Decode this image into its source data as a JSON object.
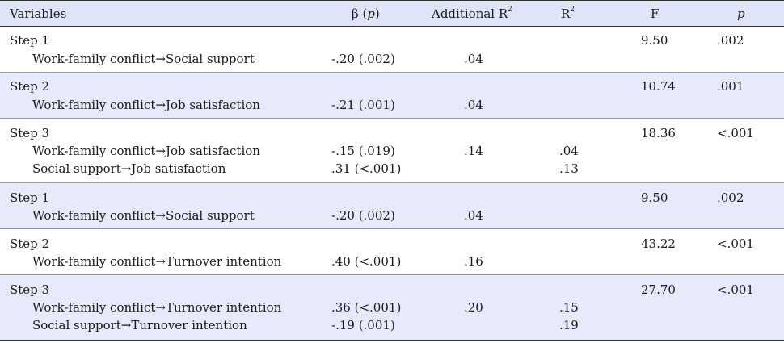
{
  "header": {
    "variables": "Variables",
    "beta_prefix": "β (",
    "beta_p": "p",
    "beta_suffix": ")",
    "additional": "Additional R",
    "r2_base": "R",
    "sup": "2",
    "f": "F",
    "p": "p"
  },
  "rows": [
    {
      "step": "Step 1",
      "sub": [
        "Work-family conflict→Social support"
      ],
      "beta": [
        "-.20 (.002)"
      ],
      "add": ".04",
      "r2": [],
      "f": "9.50",
      "p": ".002"
    },
    {
      "step": "Step 2",
      "sub": [
        "Work-family conflict→Job satisfaction"
      ],
      "beta": [
        "-.21 (.001)"
      ],
      "add": ".04",
      "r2": [],
      "f": "10.74",
      "p": ".001"
    },
    {
      "step": "Step 3",
      "sub": [
        "Work-family conflict→Job satisfaction",
        "Social support→Job satisfaction"
      ],
      "beta": [
        "-.15 (.019)",
        ".31 (<.001)"
      ],
      "add": ".14",
      "r2": [
        ".04",
        ".13"
      ],
      "f": "18.36",
      "p": "<.001"
    },
    {
      "step": "Step 1",
      "sub": [
        "Work-family conflict→Social support"
      ],
      "beta": [
        "-.20 (.002)"
      ],
      "add": ".04",
      "r2": [],
      "f": "9.50",
      "p": ".002"
    },
    {
      "step": "Step 2",
      "sub": [
        "Work-family conflict→Turnover intention"
      ],
      "beta": [
        ".40 (<.001)"
      ],
      "add": ".16",
      "r2": [],
      "f": "43.22",
      "p": "<.001"
    },
    {
      "step": "Step 3",
      "sub": [
        "Work-family conflict→Turnover intention",
        "Social support→Turnover intention"
      ],
      "beta": [
        ".36 (<.001)",
        "-.19 (.001)"
      ],
      "add": ".20",
      "r2": [
        ".15",
        ".19"
      ],
      "f": "27.70",
      "p": "<.001"
    }
  ]
}
